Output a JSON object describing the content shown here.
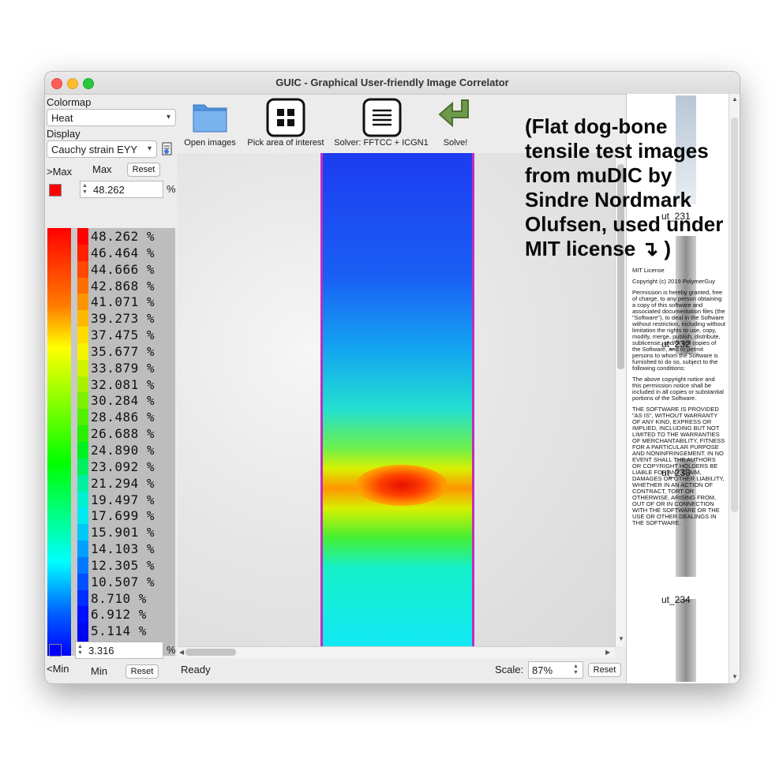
{
  "window": {
    "title": "GUIC - Graphical User-friendly Image Correlator"
  },
  "left_panel": {
    "colormap_label": "Colormap",
    "colormap_value": "Heat",
    "display_label": "Display",
    "display_value": "Cauchy strain EYY",
    "max_label": ">Max",
    "max_caption": "Max",
    "reset_label": "Reset",
    "max_value": "48.262",
    "percent": "%",
    "min_value": "3.316",
    "min_label": "<Min",
    "min_caption": "Min",
    "ticks": [
      "48.262 %",
      "46.464 %",
      "44.666 %",
      "42.868 %",
      "41.071 %",
      "39.273 %",
      "37.475 %",
      "35.677 %",
      "33.879 %",
      "32.081 %",
      "30.284 %",
      "28.486 %",
      "26.688 %",
      "24.890 %",
      "23.092 %",
      "21.294 %",
      "19.497 %",
      "17.699 %",
      "15.901 %",
      "14.103 %",
      "12.305 %",
      "10.507 %",
      "8.710 %",
      "6.912 %",
      "5.114 %",
      "3.316 %"
    ],
    "max_color": "#ff0000",
    "min_color": "#0000ff"
  },
  "toolbar": {
    "open_images": "Open images",
    "pick_area": "Pick area of interest",
    "solver": "Solver: FFTCC + ICGN1",
    "solve": "Solve!"
  },
  "status": {
    "text": "Ready",
    "scale_label": "Scale:",
    "scale_value": "87%",
    "reset_label": "Reset"
  },
  "thumbnails": {
    "labels": [
      "ut_231",
      "ut_232",
      "ut_233",
      "ut_234"
    ]
  },
  "license_overlay": {
    "heading": "(Flat dog-bone tensile test images from muDIC by Sindre Nordmark Olufsen, used under MIT license ↴ )",
    "title": "MIT License",
    "copyright": "Copyright (c) 2019 PolymerGuy",
    "para1": "Permission is hereby granted, free of charge, to any person obtaining a copy of this software and associated documentation files (the \"Software\"), to deal in the Software without restriction, including without limitation the rights to use, copy, modify, merge, publish, distribute, sublicense, and/or sell copies of the Software, and to permit persons to whom the Software is furnished to do so, subject to the following conditions:",
    "para2": "The above copyright notice and this permission notice shall be included in all copies or substantial portions of the Software.",
    "para3": "THE SOFTWARE IS PROVIDED \"AS IS\", WITHOUT WARRANTY OF ANY KIND, EXPRESS OR IMPLIED, INCLUDING BUT NOT LIMITED TO THE WARRANTIES OF MERCHANTABILITY, FITNESS FOR A PARTICULAR PURPOSE AND NONINFRINGEMENT. IN NO EVENT SHALL THE AUTHORS OR COPYRIGHT HOLDERS BE LIABLE FOR ANY CLAIM, DAMAGES OR OTHER LIABILITY, WHETHER IN AN ACTION OF CONTRACT, TORT OR OTHERWISE, ARISING FROM, OUT OF OR IN CONNECTION WITH THE SOFTWARE OR THE USE OR OTHER DEALINGS IN THE SOFTWARE."
  }
}
